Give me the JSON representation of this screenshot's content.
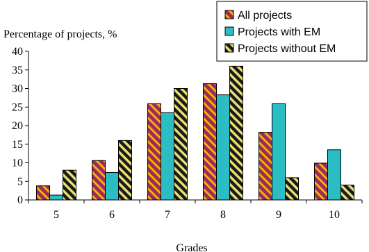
{
  "chart_data": {
    "type": "bar",
    "title": "",
    "ylabel": "Percentage of projects, %",
    "xlabel": "Grades",
    "categories": [
      "5",
      "6",
      "7",
      "8",
      "9",
      "10"
    ],
    "ylim": [
      0,
      40
    ],
    "yticks": [
      0,
      5,
      10,
      15,
      20,
      25,
      30,
      35,
      40
    ],
    "grid": false,
    "legend_position": "top-right",
    "series": [
      {
        "name": "All projects",
        "values": [
          3.8,
          10.6,
          25.9,
          31.3,
          18.2,
          9.9
        ],
        "color": "#9c2a5c",
        "pattern_color": "#f2b400"
      },
      {
        "name": "Projects with EM",
        "values": [
          1.3,
          7.4,
          23.5,
          28.3,
          25.9,
          13.5
        ],
        "color": "#2bbcc4",
        "pattern_color": ""
      },
      {
        "name": "Projects without EM",
        "values": [
          8.0,
          16.0,
          30.0,
          36.0,
          6.0,
          4.0
        ],
        "color": "#1a1a1a",
        "pattern_color": "#e8e070"
      }
    ]
  }
}
